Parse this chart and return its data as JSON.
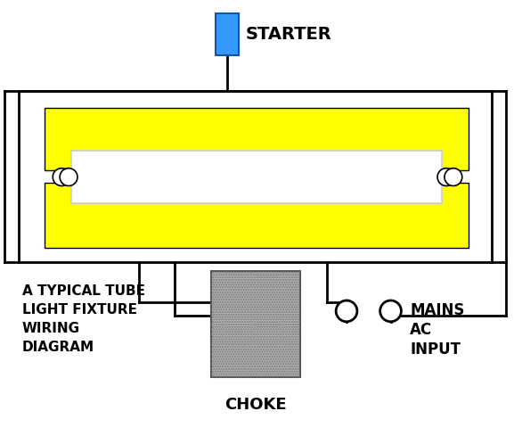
{
  "bg_color": "#ffffff",
  "title_text": "A TYPICAL TUBE\nLIGHT FIXTURE\nWIRING\nDIAGRAM",
  "starter_label": "STARTER",
  "choke_label": "CHOKE",
  "mains_label": "MAINS\nAC\nINPUT",
  "tube_yellow": "#FFFF00",
  "starter_blue": "#3399FF",
  "choke_gray": "#B0B0B0",
  "line_color": "#000000",
  "lw": 2.0,
  "fig_w": 5.77,
  "fig_h": 4.98,
  "dpi": 100
}
